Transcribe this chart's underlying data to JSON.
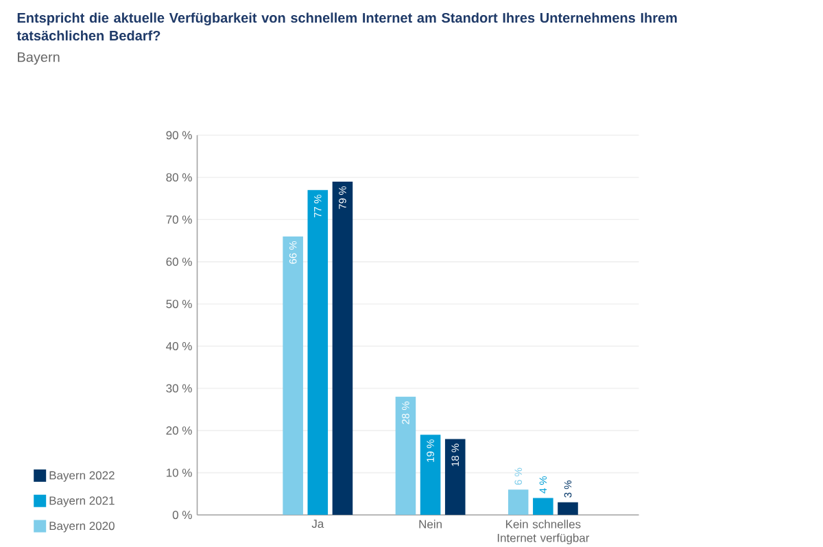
{
  "chart_data": {
    "type": "bar",
    "title": "Entspricht die aktuelle Verfügbarkeit von schnellem Internet am Standort Ihres Unternehmens Ihrem tatsächlichen Bedarf?",
    "subtitle": "Bayern",
    "categories": [
      "Ja",
      "Nein",
      "Kein schnelles Internet verfügbar"
    ],
    "series": [
      {
        "name": "Bayern 2020",
        "color": "#7fcdea",
        "values": [
          66,
          28,
          6
        ],
        "value_labels": [
          "66 %",
          "28 %",
          "6 %"
        ]
      },
      {
        "name": "Bayern 2021",
        "color": "#009fd6",
        "values": [
          77,
          19,
          4
        ],
        "value_labels": [
          "77 %",
          "19 %",
          "4 %"
        ]
      },
      {
        "name": "Bayern 2022",
        "color": "#003466",
        "values": [
          79,
          18,
          3
        ],
        "value_labels": [
          "79 %",
          "18 %",
          "3 %"
        ]
      }
    ],
    "ylim": [
      0,
      90
    ],
    "yticks": [
      {
        "value": 0,
        "label": "0 %"
      },
      {
        "value": 10,
        "label": "10 %"
      },
      {
        "value": 20,
        "label": "20 %"
      },
      {
        "value": 30,
        "label": "30 %"
      },
      {
        "value": 40,
        "label": "40 %"
      },
      {
        "value": 50,
        "label": "50 %"
      },
      {
        "value": 60,
        "label": "60 %"
      },
      {
        "value": 70,
        "label": "70 %"
      },
      {
        "value": 80,
        "label": "80 %"
      },
      {
        "value": 90,
        "label": "90 %"
      }
    ],
    "grid": "y",
    "legend": "bottom left"
  }
}
